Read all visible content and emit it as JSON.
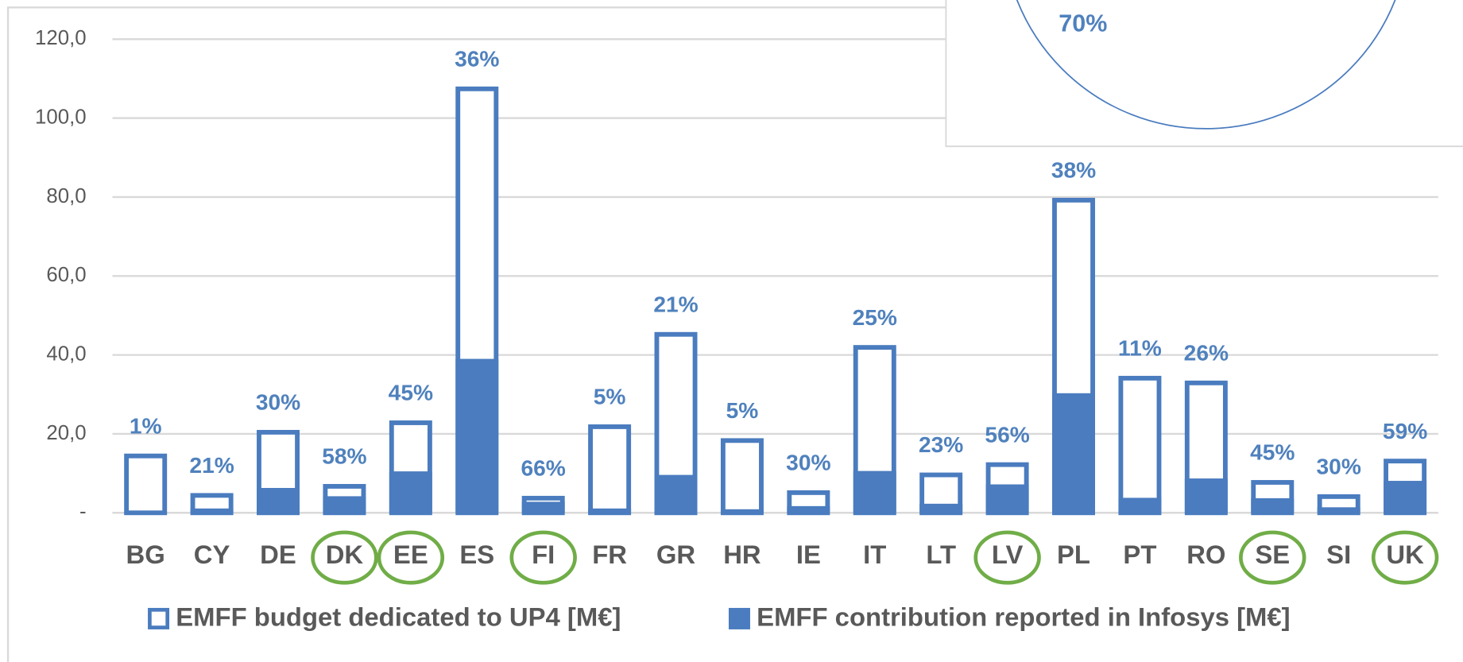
{
  "chart_data": {
    "type": "bar",
    "categories": [
      "BG",
      "CY",
      "DE",
      "DK",
      "EE",
      "ES",
      "FI",
      "FR",
      "GR",
      "HR",
      "IE",
      "IT",
      "LT",
      "LV",
      "PL",
      "PT",
      "RO",
      "SE",
      "SI",
      "UK"
    ],
    "series": [
      {
        "name": "EMFF budget dedicated to UP4 [M€]",
        "color": "#4a7cbf",
        "style": "outline",
        "values": [
          15,
          5,
          21,
          7.3,
          23.4,
          108,
          4.3,
          22.4,
          45.8,
          18.9,
          5.7,
          42.5,
          10.2,
          12.8,
          79.8,
          34.7,
          33.5,
          8.3,
          4.7,
          13.7
        ]
      },
      {
        "name": "EMFF contribution reported in Infosys [M€]",
        "color": "#4a7cbf",
        "style": "filled",
        "values": [
          0.2,
          1.1,
          6.3,
          4.2,
          10.5,
          39,
          2.8,
          1.1,
          9.6,
          0.9,
          1.7,
          10.6,
          2.3,
          7.2,
          30.3,
          3.8,
          8.7,
          3.7,
          1.4,
          8.1
        ]
      }
    ],
    "annotations": [
      "1%",
      "21%",
      "30%",
      "58%",
      "45%",
      "36%",
      "66%",
      "5%",
      "21%",
      "5%",
      "30%",
      "25%",
      "23%",
      "56%",
      "38%",
      "11%",
      "26%",
      "45%",
      "30%",
      "59%"
    ],
    "highlighted": [
      "DK",
      "EE",
      "FI",
      "LV",
      "SE",
      "UK"
    ],
    "highlight_color": "#70ad47",
    "ylim": [
      0,
      120
    ],
    "yticks": [
      {
        "value": 0,
        "label": "-"
      },
      {
        "value": 20,
        "label": "20,0"
      },
      {
        "value": 40,
        "label": "40,0"
      },
      {
        "value": 60,
        "label": "60,0"
      },
      {
        "value": 80,
        "label": "80,0"
      },
      {
        "value": 100,
        "label": "100,0"
      },
      {
        "value": 120,
        "label": "120,0"
      }
    ],
    "grid": true,
    "inset": {
      "label": "70%"
    }
  }
}
